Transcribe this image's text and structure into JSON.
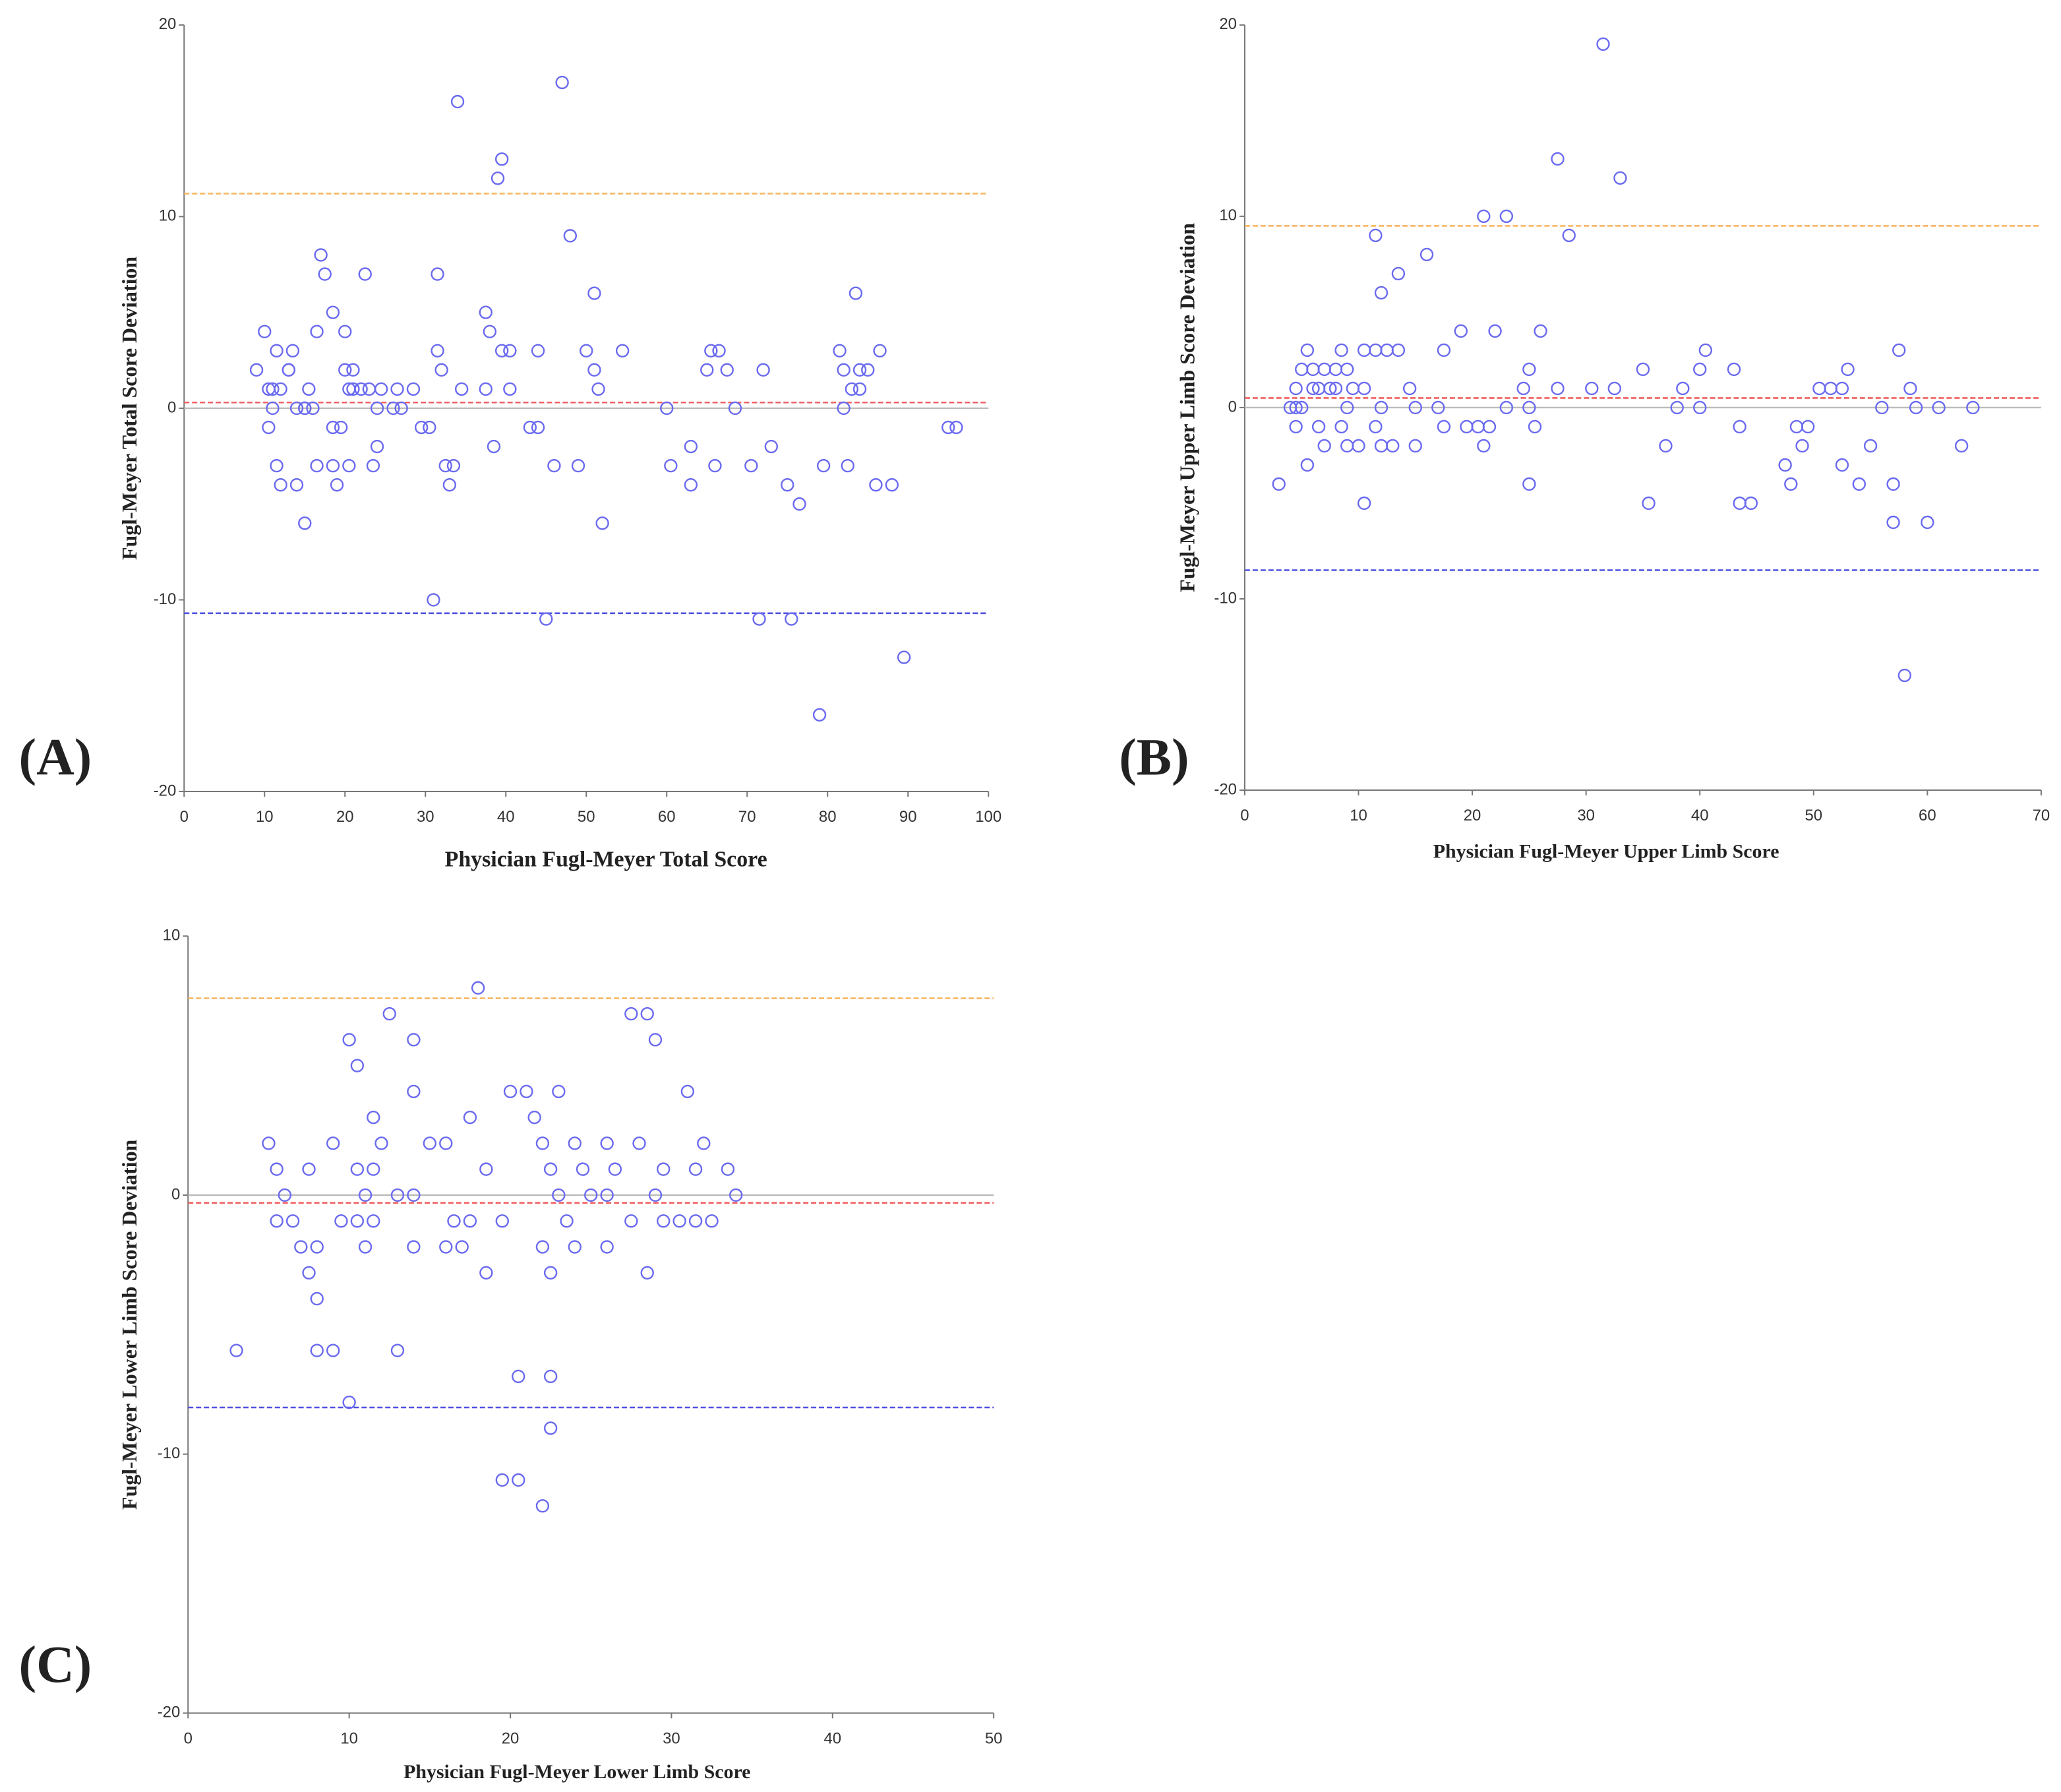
{
  "chart_data": [
    {
      "type": "scatter",
      "panel_label": "(A)",
      "xlabel": "Physician  Fugl-Meyer Total Score",
      "ylabel": "Fugl-Meyer Total Score Deviation",
      "color": "#6a6af0",
      "xlim": [
        0,
        100
      ],
      "xticks": [
        0,
        10,
        20,
        30,
        40,
        50,
        60,
        70,
        80,
        90,
        100
      ],
      "ylim": [
        -20,
        20
      ],
      "yticks": [
        -20,
        -10,
        0,
        10,
        20
      ],
      "hlines": [
        {
          "value": 11.2,
          "color": "#f5b860"
        },
        {
          "value": 0.3,
          "color": "#f06060"
        },
        {
          "value": -10.7,
          "color": "#5050e0"
        }
      ],
      "x": [
        9,
        10,
        10.5,
        10.5,
        11,
        11,
        11.5,
        11.5,
        12,
        12,
        13,
        13,
        13.5,
        14,
        14,
        15,
        15,
        15,
        15.5,
        16,
        16.5,
        16.5,
        17,
        17.5,
        18.5,
        18.5,
        18.5,
        19,
        19.5,
        20,
        20,
        20.5,
        20.5,
        21,
        21,
        22,
        22.5,
        23,
        23.5,
        24,
        24,
        24.5,
        26,
        26.5,
        27,
        28.5,
        29.5,
        30.5,
        31,
        31.5,
        31.5,
        32,
        32.5,
        33,
        33.5,
        34,
        34.5,
        37.5,
        37.5,
        38,
        38.5,
        39,
        39.5,
        39.5,
        40.5,
        40.5,
        43,
        44,
        44,
        45,
        46,
        47,
        48,
        49,
        50,
        51,
        51,
        51.5,
        52,
        54.5,
        60,
        60.5,
        63,
        63,
        65,
        65.5,
        66,
        66.5,
        67.5,
        68.5,
        70.5,
        71.5,
        72,
        73,
        75,
        75.5,
        76.5,
        79,
        79.5,
        81.5,
        82,
        82,
        82.5,
        83,
        83.5,
        84,
        84,
        85,
        86,
        86.5,
        88,
        89.5,
        95,
        96
      ],
      "values": [
        2,
        4,
        1,
        -1,
        1,
        0,
        3,
        -3,
        1,
        -4,
        2,
        2,
        3,
        0,
        -4,
        0,
        -6,
        0,
        1,
        0,
        -3,
        4,
        8,
        7,
        5,
        -1,
        -3,
        -4,
        -1,
        2,
        4,
        1,
        -3,
        2,
        1,
        1,
        7,
        1,
        -3,
        -2,
        0,
        1,
        0,
        1,
        0,
        1,
        -1,
        -1,
        -10,
        7,
        3,
        2,
        -3,
        -4,
        -3,
        16,
        1,
        5,
        1,
        4,
        -2,
        12,
        13,
        3,
        3,
        1,
        -1,
        3,
        -1,
        -11,
        -3,
        17,
        9,
        -3,
        3,
        6,
        2,
        1,
        -6,
        3,
        0,
        -3,
        -2,
        -4,
        2,
        3,
        -3,
        3,
        2,
        0,
        -3,
        -11,
        2,
        -2,
        -4,
        -11,
        -5,
        -16,
        -3,
        3,
        2,
        0,
        -3,
        1,
        6,
        2,
        1,
        2,
        -4,
        3,
        -4,
        -13,
        -1,
        -1
      ]
    },
    {
      "type": "scatter",
      "panel_label": "(B)",
      "xlabel": "Physician Fugl-Meyer Upper Limb Score",
      "ylabel": "Fugl-Meyer Upper Limb Score Deviation",
      "color": "#6a6af0",
      "xlim": [
        0,
        70
      ],
      "xticks": [
        0,
        10,
        20,
        30,
        40,
        50,
        60,
        70
      ],
      "ylim": [
        -20,
        20
      ],
      "yticks": [
        -20,
        -10,
        0,
        10,
        20
      ],
      "hlines": [
        {
          "value": 9.5,
          "color": "#f5b860"
        },
        {
          "value": 0.5,
          "color": "#f06060"
        },
        {
          "value": -8.5,
          "color": "#5050e0"
        }
      ],
      "x": [
        3,
        4,
        4.5,
        4.5,
        4.5,
        5,
        5,
        5.5,
        5.5,
        6,
        6,
        6.5,
        6.5,
        7,
        7,
        7.5,
        8,
        8,
        8.5,
        8.5,
        9,
        9,
        9,
        9.5,
        10,
        10.5,
        10.5,
        10.5,
        11.5,
        11.5,
        11.5,
        12,
        12,
        12,
        12.5,
        13,
        13.5,
        13.5,
        14.5,
        15,
        15,
        16,
        17,
        17.5,
        17.5,
        19,
        19.5,
        20.5,
        21,
        21,
        21.5,
        22,
        23,
        23,
        24.5,
        25,
        25,
        25,
        25.5,
        26,
        27.5,
        27.5,
        28.5,
        30.5,
        31.5,
        32.5,
        33,
        35,
        35.5,
        37,
        38,
        38.5,
        40,
        40,
        40.5,
        43,
        43.5,
        43.5,
        44.5,
        47.5,
        48,
        48.5,
        49,
        49.5,
        50.5,
        51.5,
        52.5,
        52.5,
        53,
        54,
        55,
        56,
        57,
        57,
        57.5,
        58,
        58.5,
        59,
        60,
        61,
        63,
        64
      ],
      "values": [
        -4,
        0,
        0,
        1,
        -1,
        2,
        0,
        3,
        -3,
        2,
        1,
        -1,
        1,
        2,
        -2,
        1,
        1,
        2,
        3,
        -1,
        2,
        0,
        -2,
        1,
        -2,
        3,
        1,
        -5,
        9,
        3,
        -1,
        6,
        0,
        -2,
        3,
        -2,
        7,
        3,
        1,
        0,
        -2,
        8,
        0,
        3,
        -1,
        4,
        -1,
        -1,
        10,
        -2,
        -1,
        4,
        10,
        0,
        1,
        2,
        0,
        -4,
        -1,
        4,
        13,
        1,
        9,
        1,
        19,
        1,
        12,
        2,
        -5,
        -2,
        0,
        1,
        2,
        0,
        3,
        2,
        -1,
        -5,
        -5,
        -3,
        -4,
        -1,
        -2,
        -1,
        1,
        1,
        1,
        -3,
        2,
        -4,
        -2,
        0,
        -4,
        -6,
        3,
        -14,
        1,
        0,
        -6,
        0,
        -2,
        0
      ]
    },
    {
      "type": "scatter",
      "panel_label": "(C)",
      "xlabel": "Physician Fugl-Meyer Lower Limb Score",
      "ylabel": "Fugl-Meyer Lower Limb Score Deviation",
      "color": "#6a6af0",
      "xlim": [
        0,
        50
      ],
      "xticks": [
        0,
        10,
        20,
        30,
        40,
        50
      ],
      "ylim": [
        -20,
        10
      ],
      "yticks": [
        -20,
        -10,
        0,
        10
      ],
      "hlines": [
        {
          "value": 7.6,
          "color": "#f5b860"
        },
        {
          "value": -0.3,
          "color": "#f06060"
        },
        {
          "value": -8.2,
          "color": "#5050e0"
        }
      ],
      "x": [
        3,
        5,
        5.5,
        5.5,
        6,
        6.5,
        7,
        7.5,
        7.5,
        8,
        8,
        8,
        9,
        9,
        9.5,
        10,
        10,
        10.5,
        10.5,
        10.5,
        11,
        11,
        11.5,
        11.5,
        11.5,
        12,
        12.5,
        13,
        13,
        14,
        14,
        14,
        14,
        15,
        16,
        16,
        16.5,
        17,
        17.5,
        17.5,
        18,
        18.5,
        18.5,
        19.5,
        19.5,
        20,
        20.5,
        20.5,
        21,
        21.5,
        22,
        22,
        22,
        22.5,
        22.5,
        22.5,
        22.5,
        23,
        23,
        23.5,
        24,
        24,
        24.5,
        25,
        26,
        26,
        26,
        26.5,
        27.5,
        27.5,
        28,
        28.5,
        28.5,
        29,
        29,
        29.5,
        29.5,
        30.5,
        31,
        31.5,
        31.5,
        32,
        32.5,
        33.5,
        34
      ],
      "values": [
        -6,
        2,
        1,
        -1,
        0,
        -1,
        -2,
        1,
        -3,
        -2,
        -4,
        -6,
        2,
        -6,
        -1,
        6,
        -8,
        5,
        1,
        -1,
        0,
        -2,
        3,
        1,
        -1,
        2,
        7,
        0,
        -6,
        6,
        4,
        0,
        -2,
        2,
        2,
        -2,
        -1,
        -2,
        3,
        -1,
        8,
        1,
        -3,
        -1,
        -11,
        4,
        -7,
        -11,
        4,
        3,
        2,
        -2,
        -12,
        1,
        -3,
        -7,
        -9,
        4,
        0,
        -1,
        2,
        -2,
        1,
        0,
        2,
        0,
        -2,
        1,
        7,
        -1,
        2,
        7,
        -3,
        6,
        0,
        1,
        -1,
        -1,
        4,
        1,
        -1,
        2,
        -1,
        1,
        0
      ]
    }
  ]
}
